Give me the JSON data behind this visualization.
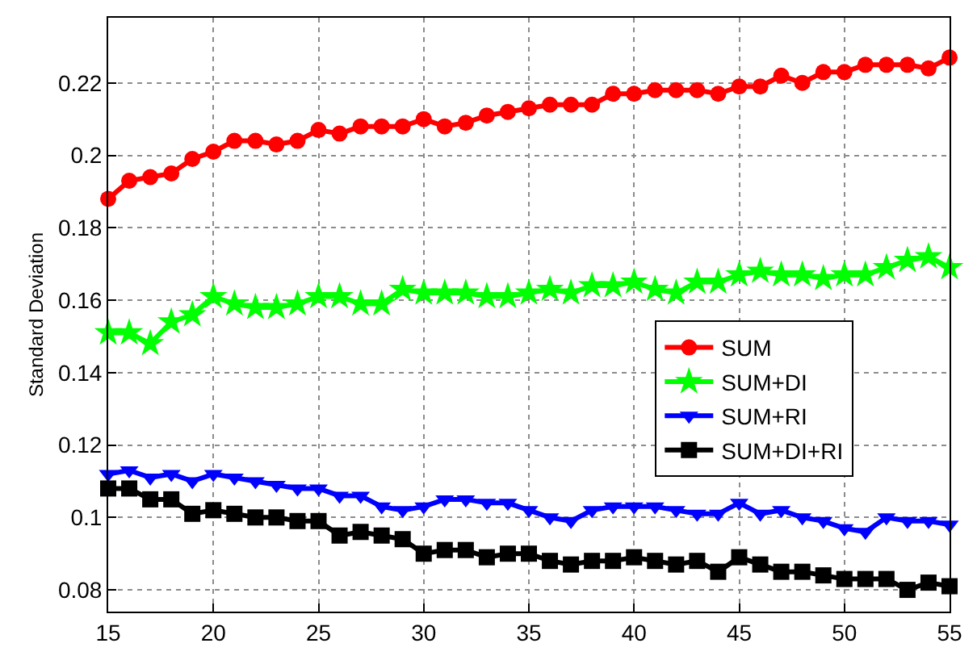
{
  "chart_data": {
    "type": "line",
    "ylabel": "Standard Deviation",
    "x": [
      15,
      16,
      17,
      18,
      19,
      20,
      21,
      22,
      23,
      24,
      25,
      26,
      27,
      28,
      29,
      30,
      31,
      32,
      33,
      34,
      35,
      36,
      37,
      38,
      39,
      40,
      41,
      42,
      43,
      44,
      45,
      46,
      47,
      48,
      49,
      50,
      51,
      52,
      53,
      54,
      55
    ],
    "series": [
      {
        "name": "SUM",
        "color": "#ff0000",
        "marker": "circle",
        "values": [
          0.188,
          0.193,
          0.194,
          0.195,
          0.199,
          0.201,
          0.204,
          0.204,
          0.203,
          0.204,
          0.207,
          0.206,
          0.208,
          0.208,
          0.208,
          0.21,
          0.208,
          0.209,
          0.211,
          0.212,
          0.213,
          0.214,
          0.214,
          0.214,
          0.217,
          0.217,
          0.218,
          0.218,
          0.218,
          0.217,
          0.219,
          0.219,
          0.222,
          0.22,
          0.223,
          0.223,
          0.225,
          0.225,
          0.225,
          0.224,
          0.227
        ]
      },
      {
        "name": "SUM+DI",
        "color": "#00ff00",
        "marker": "star",
        "values": [
          0.151,
          0.151,
          0.148,
          0.154,
          0.156,
          0.161,
          0.159,
          0.158,
          0.158,
          0.159,
          0.161,
          0.161,
          0.159,
          0.159,
          0.163,
          0.162,
          0.162,
          0.162,
          0.161,
          0.161,
          0.162,
          0.163,
          0.162,
          0.164,
          0.164,
          0.165,
          0.163,
          0.162,
          0.165,
          0.165,
          0.167,
          0.168,
          0.167,
          0.167,
          0.166,
          0.167,
          0.167,
          0.169,
          0.171,
          0.172,
          0.169
        ]
      },
      {
        "name": "SUM+RI",
        "color": "#0000ff",
        "marker": "triangle-down",
        "values": [
          0.112,
          0.113,
          0.111,
          0.112,
          0.11,
          0.112,
          0.111,
          0.11,
          0.109,
          0.108,
          0.108,
          0.106,
          0.106,
          0.103,
          0.102,
          0.103,
          0.105,
          0.105,
          0.104,
          0.104,
          0.102,
          0.1,
          0.099,
          0.102,
          0.103,
          0.103,
          0.103,
          0.102,
          0.101,
          0.101,
          0.104,
          0.101,
          0.102,
          0.1,
          0.099,
          0.097,
          0.096,
          0.1,
          0.099,
          0.099,
          0.098
        ]
      },
      {
        "name": "SUM+DI+RI",
        "color": "#000000",
        "marker": "square",
        "values": [
          0.108,
          0.108,
          0.105,
          0.105,
          0.101,
          0.102,
          0.101,
          0.1,
          0.1,
          0.099,
          0.099,
          0.095,
          0.096,
          0.095,
          0.094,
          0.09,
          0.091,
          0.091,
          0.089,
          0.09,
          0.09,
          0.088,
          0.087,
          0.088,
          0.088,
          0.089,
          0.088,
          0.087,
          0.088,
          0.085,
          0.089,
          0.087,
          0.085,
          0.085,
          0.084,
          0.083,
          0.083,
          0.083,
          0.08,
          0.082,
          0.081
        ]
      }
    ],
    "xlim": [
      15,
      55
    ],
    "xticks": [
      15,
      20,
      25,
      30,
      35,
      40,
      45,
      50,
      55
    ],
    "ylim": [
      0.074,
      0.238
    ],
    "yticks": [
      0.08,
      0.1,
      0.12,
      0.14,
      0.16,
      0.18,
      0.2,
      0.22
    ],
    "grid": true,
    "legend": "right",
    "line_style": "solid"
  }
}
